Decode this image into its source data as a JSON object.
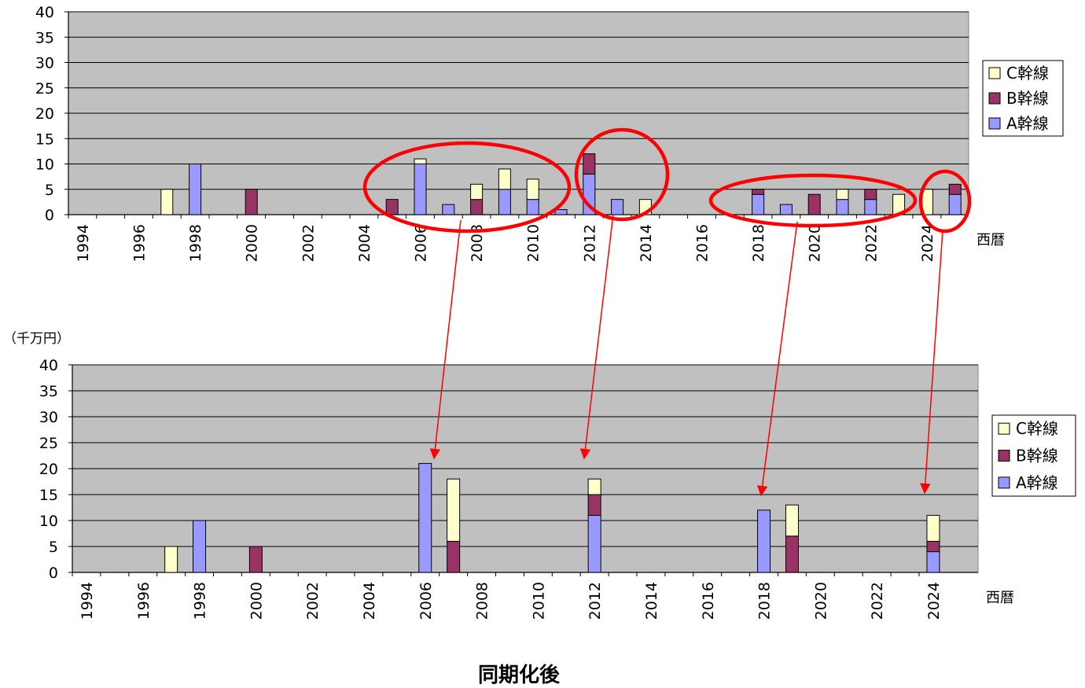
{
  "unit_label": "（千万円）",
  "caption": "同期化後",
  "colors": {
    "plot_bg": "#c0c0c0",
    "A": "#9999ff",
    "B": "#993366",
    "C": "#ffffcc",
    "annotation": "#ff0000"
  },
  "chart_data": [
    {
      "type": "bar",
      "stacked": true,
      "xlabel": "西暦",
      "ylim": [
        0,
        40
      ],
      "yticks": [
        0,
        5,
        10,
        15,
        20,
        25,
        30,
        35,
        40
      ],
      "xticks": [
        1994,
        1996,
        1998,
        2000,
        2002,
        2004,
        2006,
        2008,
        2010,
        2012,
        2014,
        2016,
        2018,
        2020,
        2022,
        2024
      ],
      "grid": true,
      "legend_position": "right",
      "categories": [
        1994,
        1995,
        1996,
        1997,
        1998,
        1999,
        2000,
        2001,
        2002,
        2003,
        2004,
        2005,
        2006,
        2007,
        2008,
        2009,
        2010,
        2011,
        2012,
        2013,
        2014,
        2015,
        2016,
        2017,
        2018,
        2019,
        2020,
        2021,
        2022,
        2023,
        2024,
        2025
      ],
      "series": [
        {
          "name": "A幹線",
          "values": [
            0,
            0,
            0,
            0,
            10,
            0,
            0,
            0,
            0,
            0,
            0,
            0,
            10,
            2,
            0,
            5,
            3,
            1,
            8,
            3,
            0,
            0,
            0,
            0,
            4,
            2,
            0,
            3,
            3,
            0,
            0,
            4
          ]
        },
        {
          "name": "B幹線",
          "values": [
            0,
            0,
            0,
            0,
            0,
            0,
            5,
            0,
            0,
            0,
            0,
            3,
            0,
            0,
            3,
            0,
            0,
            0,
            4,
            0,
            0,
            0,
            0,
            0,
            1,
            0,
            4,
            0,
            2,
            0,
            0,
            2
          ]
        },
        {
          "name": "C幹線",
          "values": [
            0,
            0,
            0,
            5,
            0,
            0,
            0,
            0,
            0,
            0,
            0,
            0,
            1,
            0,
            3,
            4,
            4,
            0,
            0,
            0,
            3,
            0,
            0,
            0,
            0,
            0,
            0,
            2,
            0,
            4,
            5,
            0
          ]
        }
      ]
    },
    {
      "type": "bar",
      "stacked": true,
      "xlabel": "西暦",
      "ylim": [
        0,
        40
      ],
      "yticks": [
        0,
        5,
        10,
        15,
        20,
        25,
        30,
        35,
        40
      ],
      "xticks": [
        1994,
        1996,
        1998,
        2000,
        2002,
        2004,
        2006,
        2008,
        2010,
        2012,
        2014,
        2016,
        2018,
        2020,
        2022,
        2024
      ],
      "grid": true,
      "legend_position": "right",
      "categories": [
        1994,
        1995,
        1996,
        1997,
        1998,
        1999,
        2000,
        2001,
        2002,
        2003,
        2004,
        2005,
        2006,
        2007,
        2008,
        2009,
        2010,
        2011,
        2012,
        2013,
        2014,
        2015,
        2016,
        2017,
        2018,
        2019,
        2020,
        2021,
        2022,
        2023,
        2024
      ],
      "series": [
        {
          "name": "A幹線",
          "values": [
            0,
            0,
            0,
            0,
            10,
            0,
            0,
            0,
            0,
            0,
            0,
            0,
            21,
            0,
            0,
            0,
            0,
            0,
            11,
            0,
            0,
            0,
            0,
            0,
            12,
            0,
            0,
            0,
            0,
            0,
            4
          ]
        },
        {
          "name": "B幹線",
          "values": [
            0,
            0,
            0,
            0,
            0,
            0,
            5,
            0,
            0,
            0,
            0,
            0,
            0,
            6,
            0,
            0,
            0,
            0,
            4,
            0,
            0,
            0,
            0,
            0,
            0,
            7,
            0,
            0,
            0,
            0,
            2
          ]
        },
        {
          "name": "C幹線",
          "values": [
            0,
            0,
            0,
            5,
            0,
            0,
            0,
            0,
            0,
            0,
            0,
            0,
            0,
            12,
            0,
            0,
            0,
            0,
            3,
            0,
            0,
            0,
            0,
            0,
            0,
            6,
            0,
            0,
            0,
            0,
            5
          ]
        }
      ]
    }
  ]
}
